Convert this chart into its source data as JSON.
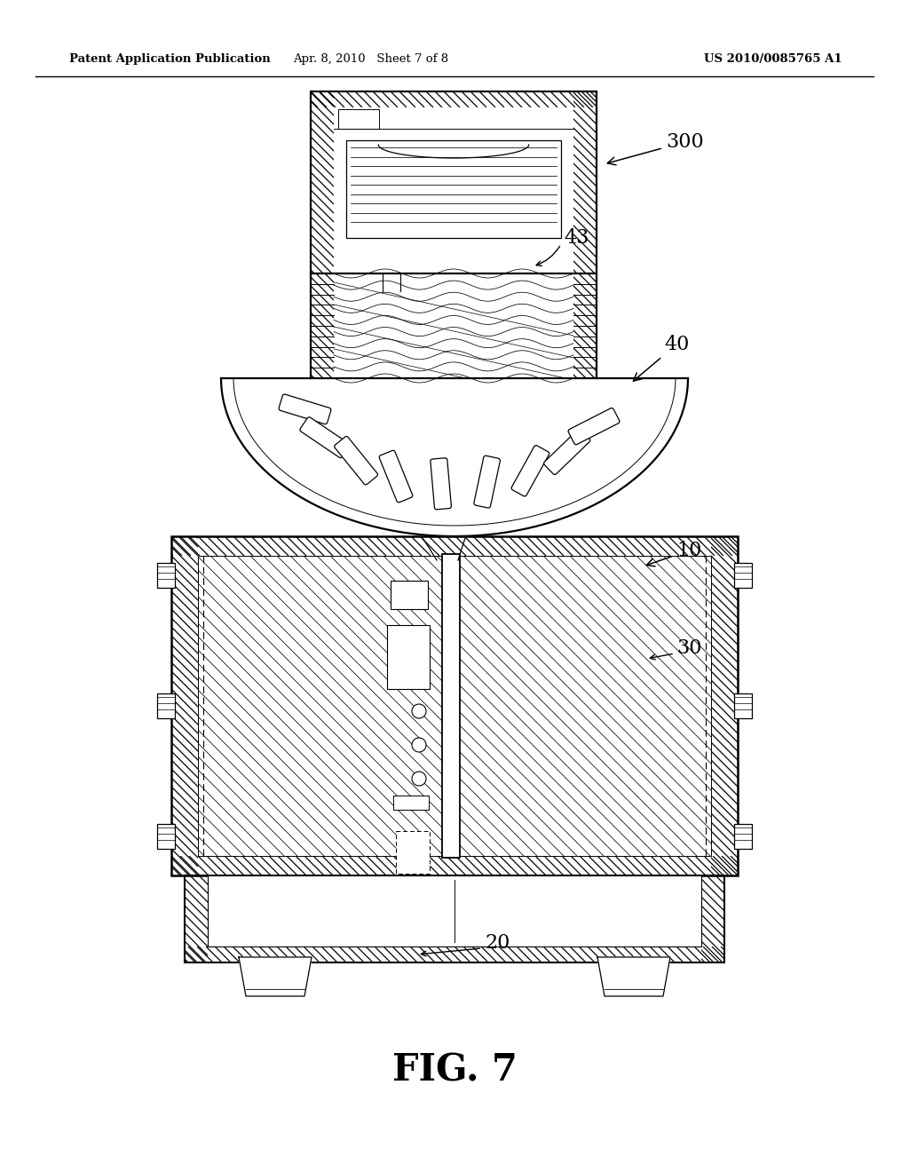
{
  "header_left": "Patent Application Publication",
  "header_mid": "Apr. 8, 2010   Sheet 7 of 8",
  "header_right": "US 2010/0085765 A1",
  "fig_label": "FIG. 7",
  "bg": "#ffffff",
  "lc": "#000000"
}
